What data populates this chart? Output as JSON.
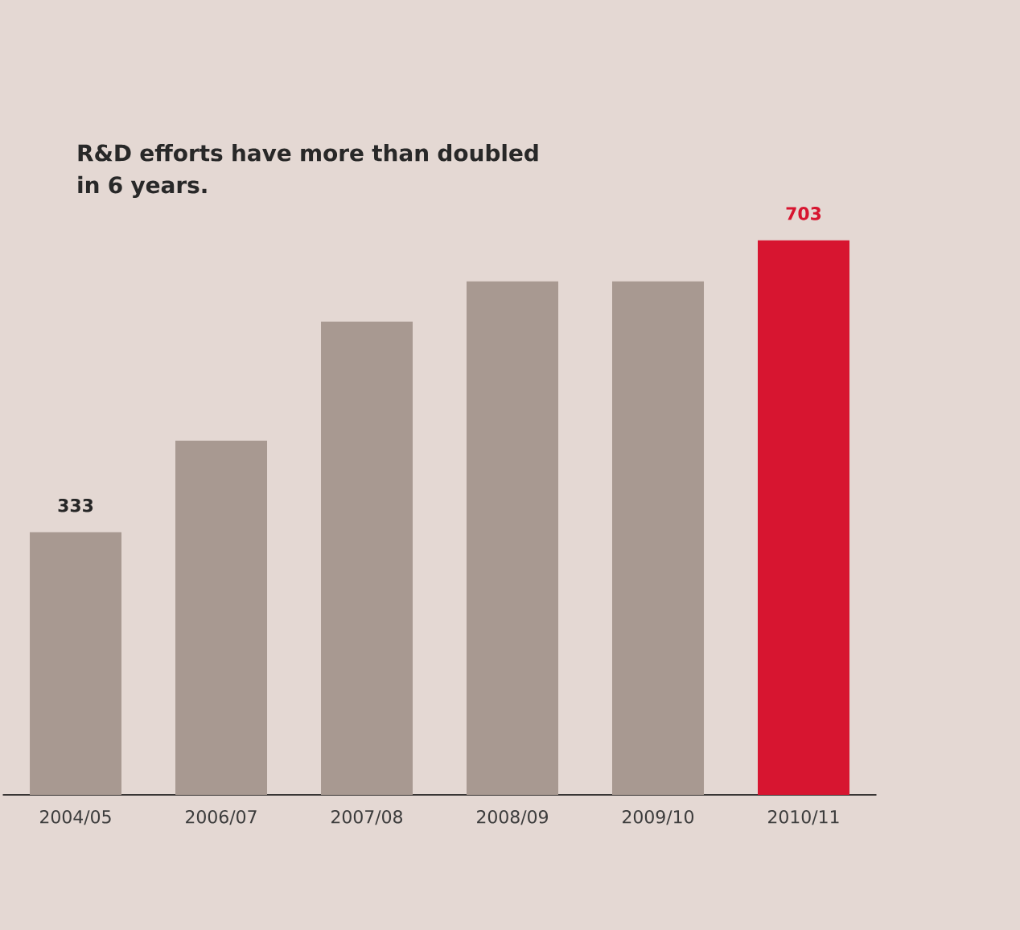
{
  "chart_data": {
    "type": "bar",
    "title": "R&D efforts have more than doubled in 6 years.",
    "categories": [
      "2004/05",
      "2006/07",
      "2007/08",
      "2008/09",
      "2009/10",
      "2010/11"
    ],
    "values": [
      333,
      449,
      600,
      651,
      651,
      703
    ],
    "colors": [
      "#a89991",
      "#a89991",
      "#a89991",
      "#a89991",
      "#a89991",
      "#d71530"
    ],
    "value_labels": [
      "333",
      null,
      null,
      null,
      null,
      "703"
    ]
  }
}
